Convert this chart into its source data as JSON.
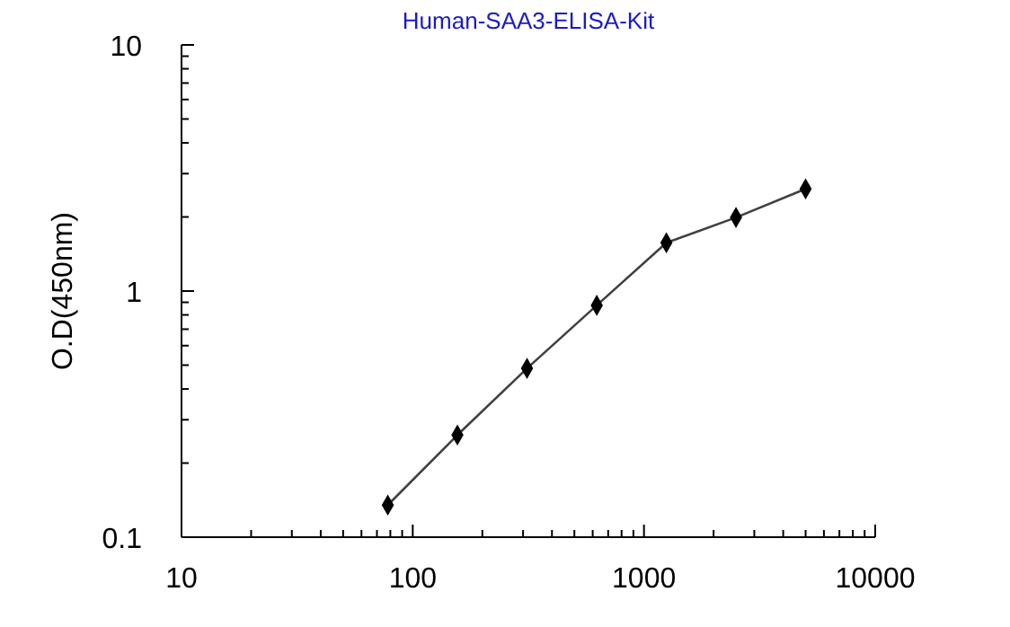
{
  "chart_data": {
    "type": "line",
    "title": "Human-SAA3-ELISA-Kit",
    "ylabel": "O.D(450nm)",
    "log": "xy",
    "marker": "diamond",
    "line_style": "solid",
    "grid": false,
    "x": [
      78,
      156,
      312,
      625,
      1250,
      2500,
      5000
    ],
    "series": [
      {
        "color": "#000000",
        "values": [
          0.135,
          0.26,
          0.485,
          0.875,
          1.57,
          1.99,
          2.6
        ]
      }
    ],
    "xlim": [
      10,
      10000
    ],
    "ylim": [
      0.1,
      10
    ],
    "xticks": [
      10,
      {
        "value": 20,
        "label": null
      },
      {
        "value": 30,
        "label": null
      },
      {
        "value": 40,
        "label": null
      },
      {
        "value": 50,
        "label": null
      },
      {
        "value": 60,
        "label": null
      },
      {
        "value": 70,
        "label": null
      },
      {
        "value": 80,
        "label": null
      },
      {
        "value": 90,
        "label": null
      },
      100,
      {
        "value": 200,
        "label": null
      },
      {
        "value": 300,
        "label": null
      },
      {
        "value": 400,
        "label": null
      },
      {
        "value": 500,
        "label": null
      },
      {
        "value": 600,
        "label": null
      },
      {
        "value": 700,
        "label": null
      },
      {
        "value": 800,
        "label": null
      },
      {
        "value": 900,
        "label": null
      },
      1000,
      {
        "value": 2000,
        "label": null
      },
      {
        "value": 3000,
        "label": null
      },
      {
        "value": 4000,
        "label": null
      },
      {
        "value": 5000,
        "label": null
      },
      {
        "value": 6000,
        "label": null
      },
      {
        "value": 7000,
        "label": null
      },
      {
        "value": 8000,
        "label": null
      },
      {
        "value": 9000,
        "label": null
      },
      10000
    ],
    "yticks": [
      0.1,
      {
        "value": 0.2,
        "label": null
      },
      {
        "value": 0.3,
        "label": null
      },
      {
        "value": 0.4,
        "label": null
      },
      {
        "value": 0.5,
        "label": null
      },
      {
        "value": 0.6,
        "label": null
      },
      {
        "value": 0.7,
        "label": null
      },
      {
        "value": 0.8,
        "label": null
      },
      {
        "value": 0.9,
        "label": null
      },
      1,
      {
        "value": 2,
        "label": null
      },
      {
        "value": 3,
        "label": null
      },
      {
        "value": 4,
        "label": null
      },
      {
        "value": 5,
        "label": null
      },
      {
        "value": 6,
        "label": null
      },
      {
        "value": 7,
        "label": null
      },
      {
        "value": 8,
        "label": null
      },
      {
        "value": 9,
        "label": null
      },
      10
    ]
  }
}
